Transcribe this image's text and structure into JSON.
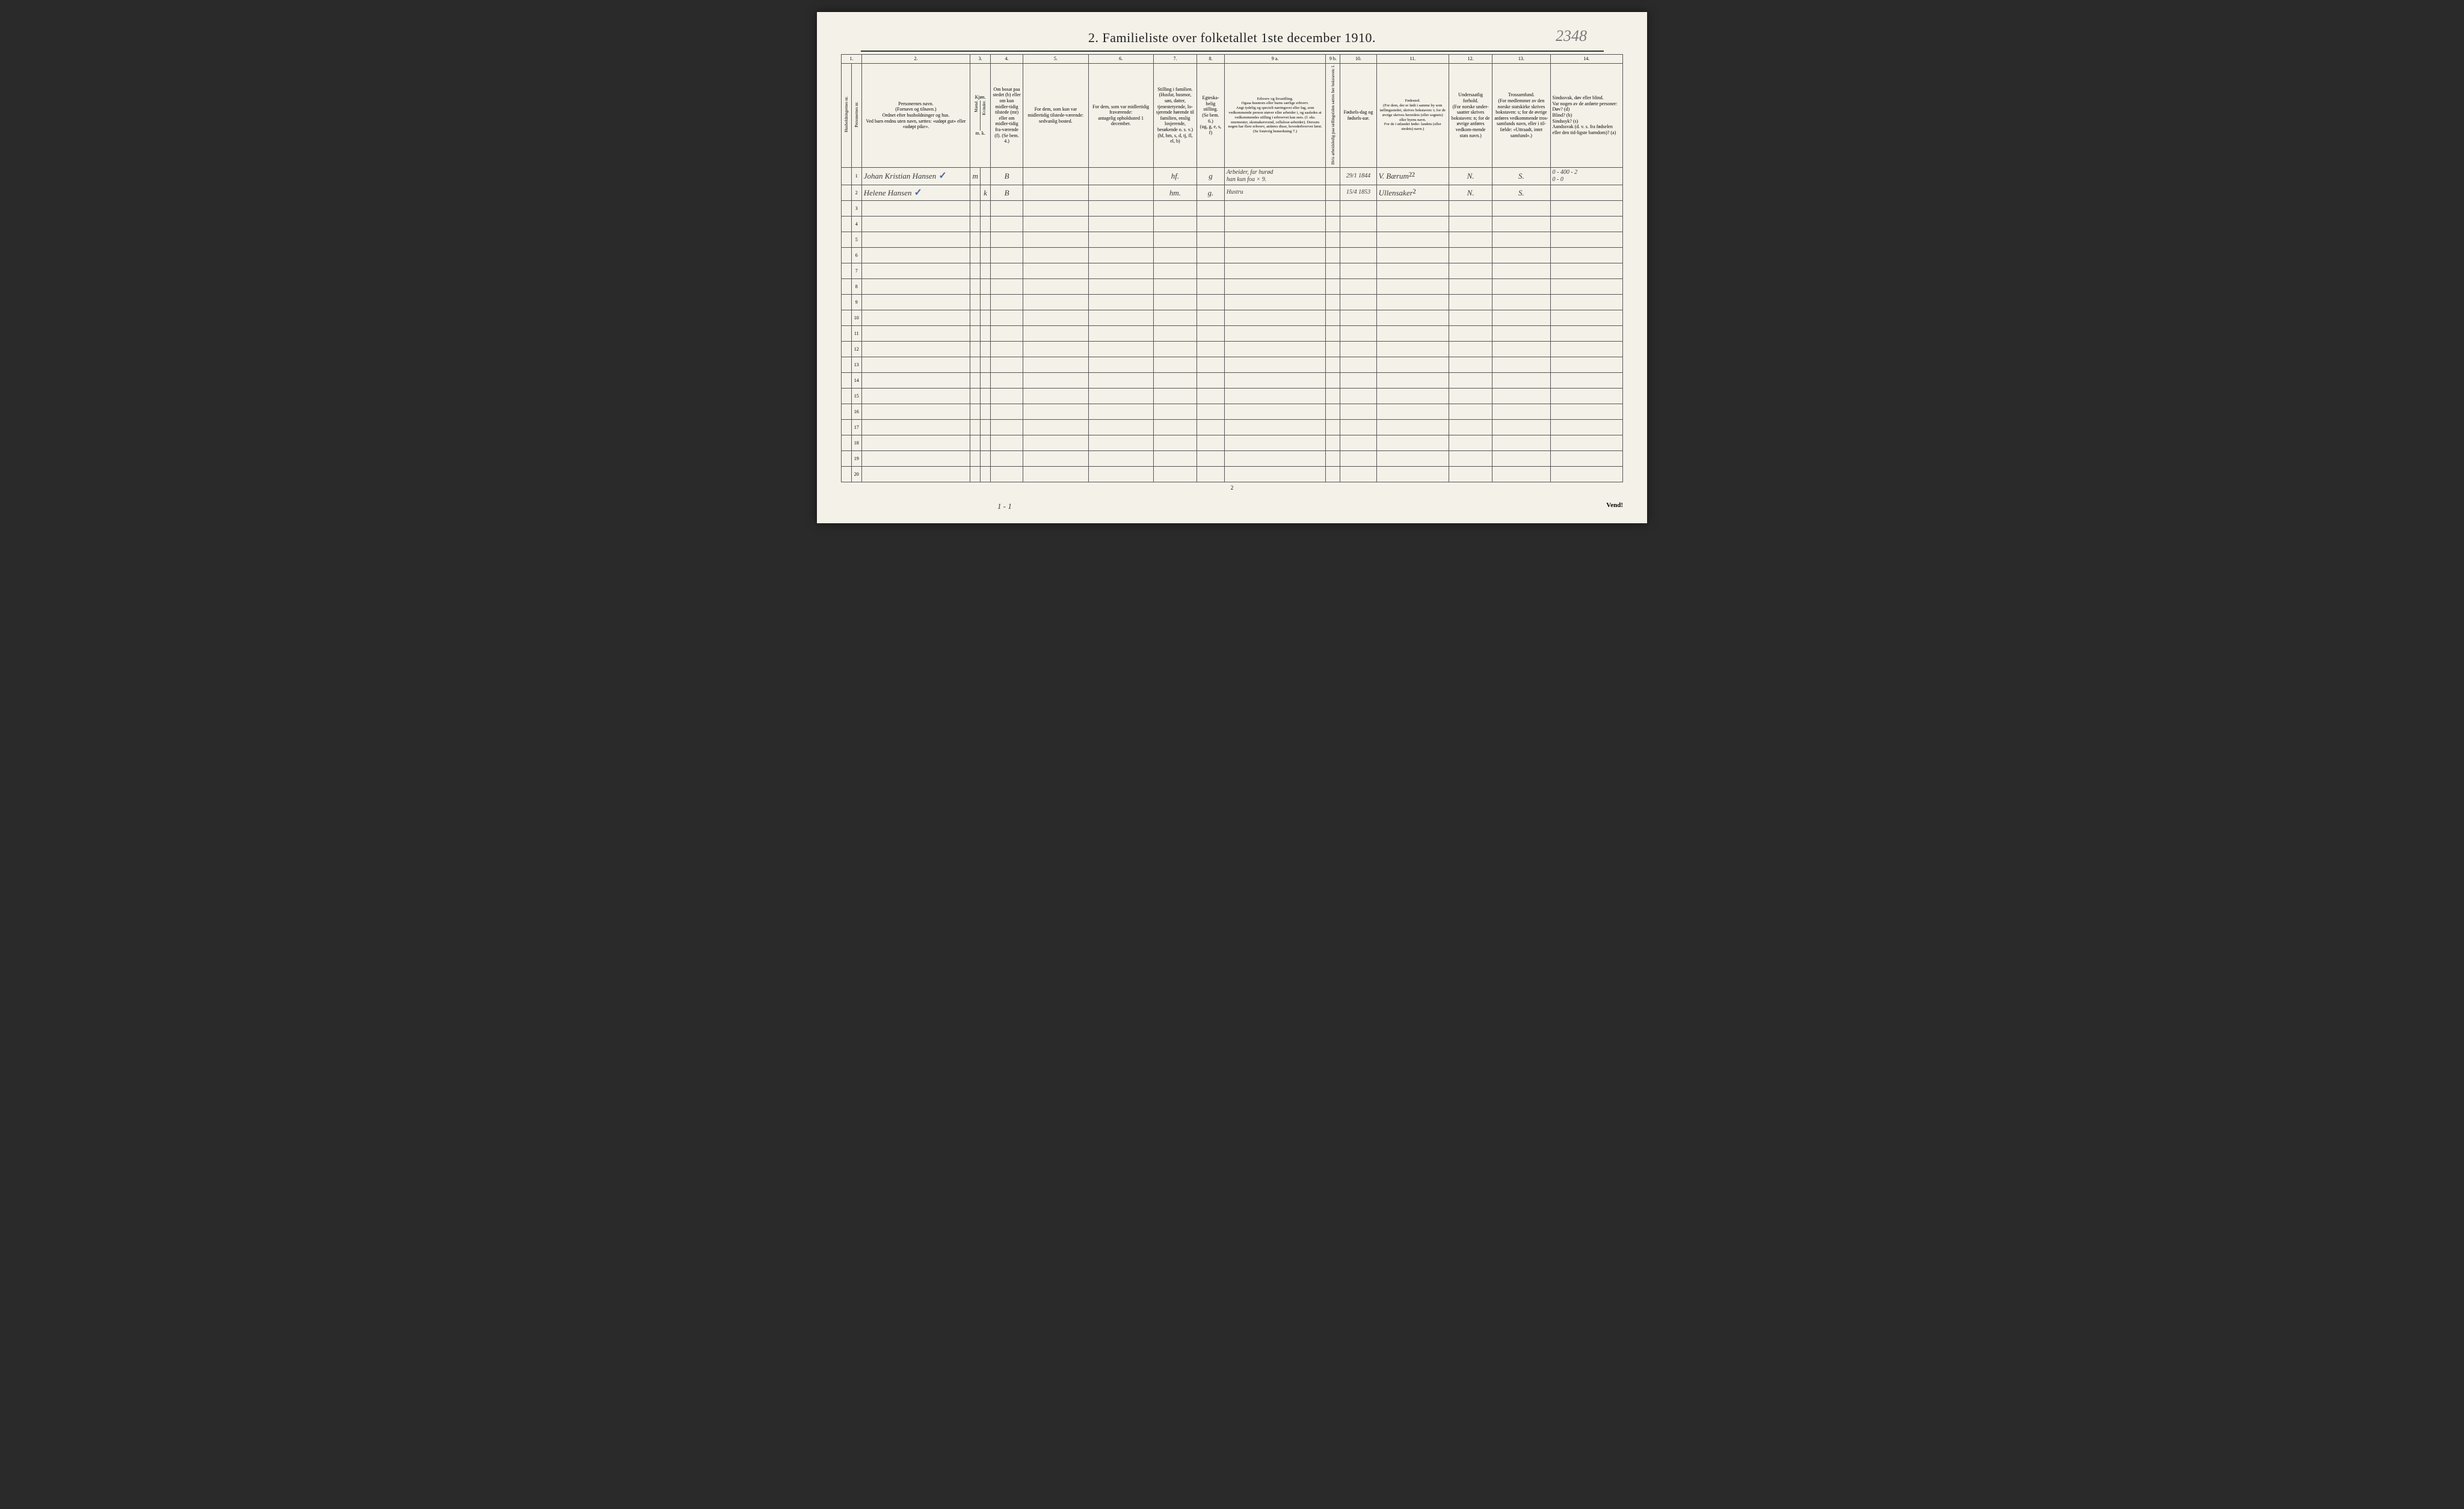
{
  "title": "2.  Familieliste over folketallet 1ste december 1910.",
  "handwritten_number": "2348",
  "page_number_bottom": "2",
  "footer_tally": "1 - 1",
  "footer_vend": "Vend!",
  "column_numbers": [
    "1.",
    "2.",
    "3.",
    "4.",
    "5.",
    "6.",
    "7.",
    "8.",
    "9 a.",
    "9 b.",
    "10.",
    "11.",
    "12.",
    "13.",
    "14."
  ],
  "headers": {
    "c1a": "Husholdningernes nr.",
    "c1b": "Personernes nr.",
    "c2": "Personernes navn.\n(Fornavn og tilnavn.)\nOrdnet efter husholdninger og hus.\nVed barn endnu uten navn, sættes: «udøpt gut» eller «udøpt pike».",
    "c3top": "Kjøn.",
    "c3a": "Mænd.",
    "c3b": "Kvinder.",
    "c3bot": "m.  k.",
    "c4": "Om bosat paa stedet (b) eller om kun midler-tidig tilstede (mt) eller om midler-tidig fra-værende (f). (Se bem. 4.)",
    "c5": "For dem, som kun var midlertidig tilstede-værende:\nsedvanlig bosted.",
    "c6": "For dem, som var midlertidig fraværende:\nantagelig opholdssted 1 december.",
    "c7": "Stilling i familien.\n(Husfar, husmor, søn, datter, tjenestetyende, lo-sjerende hørende til familien, enslig losjerende, besøkende o. s. v.)\n(hf, hm, s, d, tj, fl, el, b)",
    "c8": "Egteska-belig stilling.\n(Se bem. 6.)\n(ug, g, e, s, f)",
    "c9a": "Erhverv og livsstilling.\nOgsaa husmors eller barns særlige erhverv.\nAngi tydelig og specielt næringsvei eller fag, som vedkommende person utøver eller arbeider i, og saaledes at vedkommendes stilling i erhvervet kan sees. (f. eks. murmester, skomakersvend, cellulose-arbeider). Dersom nogen har flere erhverv, anføres disse, hovederhvervet først.\n(Se forøvrig bemerkning 7.)",
    "c9b": "Hvis arbeidsledig paa tællingstiden sættes her bokstaven: l.",
    "c10": "Fødsels-dag og fødsels-aar.",
    "c11": "Fødested.\n(For dem, der er født i samme by som tællingsstedet, skrives bokstaven: t; for de øvrige skrives herredets (eller sognets) eller byens navn.\nFor de i utlandet fødte: landets (eller stedets) navn.)",
    "c12": "Undersaatlig forhold.\n(For norske under-saatter skrives bokstaven: n; for de øvrige anføres vedkom-mende stats navn.)",
    "c13": "Trossamfund.\n(For medlemmer av den norske statskirke skrives bokstaven: s; for de øvrige anføres vedkommende tros-samfunds navn, eller i til-fælde: «Uttraadt, intet samfund».)",
    "c14": "Sindssvak, døv eller blind.\nVar nogen av de anførte personer:\nDøv?        (d)\nBlind?       (b)\nSindssyk?  (s)\nAandssvak (d. v. s. fra fødselen eller den tid-ligste barndom)? (a)"
  },
  "rows": [
    {
      "num": "1",
      "name": "Johan Kristian Hansen",
      "check": "✓",
      "sex_m": "m",
      "sex_k": "",
      "bosat": "B",
      "c5": "",
      "c6": "",
      "c7": "hf.",
      "c8": "g",
      "c9a": "Arbeider, far hurød\nhan kun foa × 9.",
      "c10": "29/1 1844",
      "c11": "V. Bærum",
      "c11sup": "22",
      "c12": "N.",
      "c13": "S.",
      "c14": "0 - 400 - 2\n0 - 0"
    },
    {
      "num": "2",
      "name": "Helene Hansen",
      "check": "✓",
      "sex_m": "",
      "sex_k": "k",
      "bosat": "B",
      "c5": "",
      "c6": "",
      "c7": "hm.",
      "c8": "g.",
      "c9a": "Hustru",
      "c10": "15/4 1853",
      "c11": "Ullensaker",
      "c11sup": "2",
      "c12": "N.",
      "c13": "S.",
      "c14": ""
    }
  ],
  "row_numbers": [
    "1",
    "2",
    "3",
    "4",
    "5",
    "6",
    "7",
    "8",
    "9",
    "10",
    "11",
    "12",
    "13",
    "14",
    "15",
    "16",
    "17",
    "18",
    "19",
    "20"
  ],
  "colors": {
    "paper": "#f4f1e8",
    "ink": "#222222",
    "border": "#555555",
    "pencil": "#7a7a7a",
    "blue_check": "#4a6a9a"
  },
  "column_widths_pct": [
    1.4,
    1.4,
    15,
    1.4,
    1.4,
    4.5,
    9,
    9,
    6,
    3.8,
    14,
    2,
    5,
    10,
    6,
    8,
    10
  ]
}
